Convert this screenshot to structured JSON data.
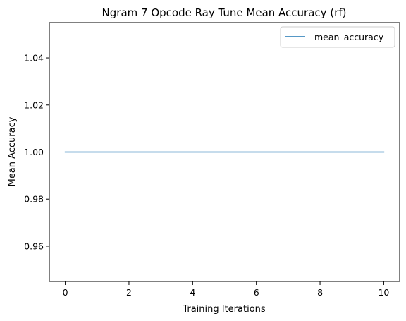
{
  "chart_data": {
    "type": "line",
    "title": "Ngram 7 Opcode Ray Tune Mean Accuracy (rf)",
    "xlabel": "Training Iterations",
    "ylabel": "Mean Accuracy",
    "xlim": [
      -0.5,
      10.5
    ],
    "ylim": [
      0.945,
      1.055
    ],
    "xticks": [
      0,
      2,
      4,
      6,
      8,
      10
    ],
    "xtick_labels": [
      "0",
      "2",
      "4",
      "6",
      "8",
      "10"
    ],
    "yticks": [
      0.96,
      0.98,
      1.0,
      1.02,
      1.04
    ],
    "ytick_labels": [
      "0.96",
      "0.98",
      "1.00",
      "1.02",
      "1.04"
    ],
    "grid": false,
    "legend_position": "upper-right",
    "series": [
      {
        "name": "mean_accuracy",
        "color": "#1f77b4",
        "x": [
          0,
          1,
          2,
          3,
          4,
          5,
          6,
          7,
          8,
          9,
          10
        ],
        "y": [
          1.0,
          1.0,
          1.0,
          1.0,
          1.0,
          1.0,
          1.0,
          1.0,
          1.0,
          1.0,
          1.0
        ]
      }
    ]
  }
}
